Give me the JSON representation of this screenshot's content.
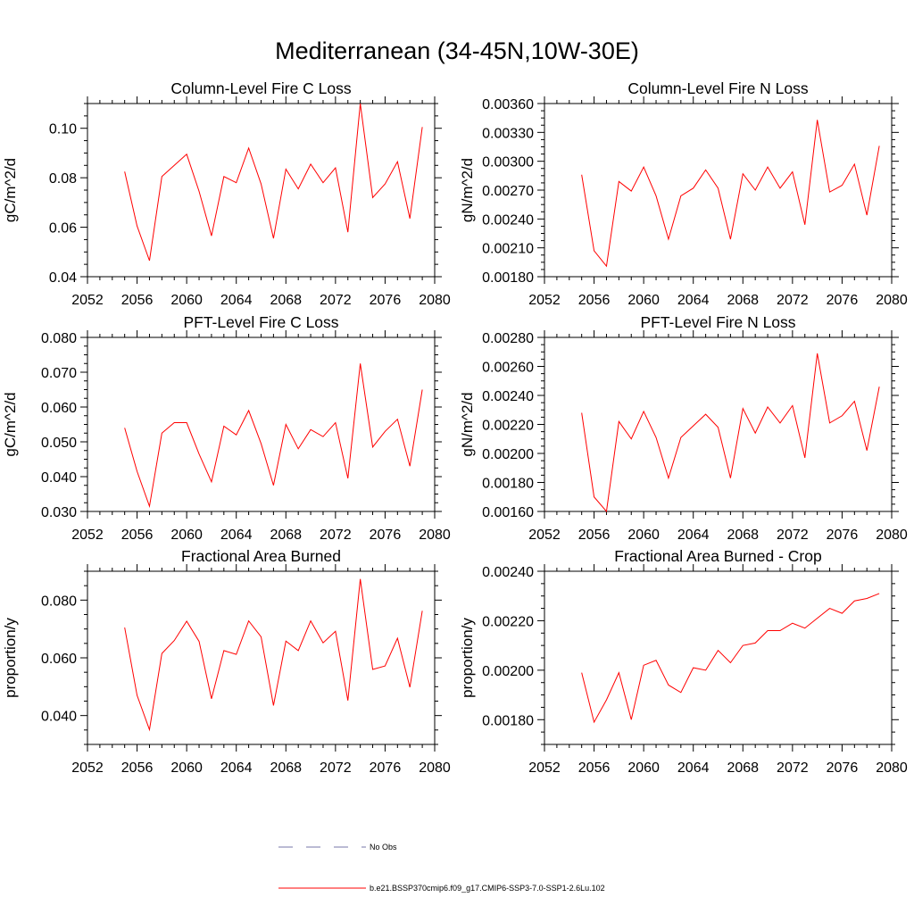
{
  "page": {
    "title": "Mediterranean (34-45N,10W-30E)"
  },
  "legend": {
    "entries": [
      {
        "label": "No Obs",
        "color": "#7777aa",
        "dash": true
      },
      {
        "label": "b.e21.BSSP370cmip6.f09_g17.CMIP6-SSP3-7.0-SSP1-2.6Lu.102",
        "color": "#ff0000",
        "dash": false
      }
    ]
  },
  "chart_data": [
    {
      "type": "line",
      "title": "Column-Level Fire C Loss",
      "ylabel": "gC/m^2/d",
      "xlim": [
        2052,
        2080
      ],
      "ylim": [
        0.04,
        0.11
      ],
      "x_ticks": [
        "2052",
        "2056",
        "2060",
        "2064",
        "2068",
        "2072",
        "2076",
        "2080"
      ],
      "y_ticks": [
        "0.04",
        "0.06",
        "0.08",
        "0.10"
      ],
      "x": [
        2055,
        2056,
        2057,
        2058,
        2059,
        2060,
        2061,
        2062,
        2063,
        2064,
        2065,
        2066,
        2067,
        2068,
        2069,
        2070,
        2071,
        2072,
        2073,
        2074,
        2075,
        2076,
        2077,
        2078,
        2079
      ],
      "series": [
        {
          "color": "#ff0000",
          "values": [
            0.0825,
            0.0605,
            0.0465,
            0.0805,
            0.085,
            0.0895,
            0.0745,
            0.0565,
            0.0805,
            0.078,
            0.092,
            0.0775,
            0.0555,
            0.0835,
            0.0755,
            0.0855,
            0.078,
            0.084,
            0.058,
            0.11,
            0.072,
            0.0775,
            0.0865,
            0.0635,
            0.1005
          ]
        }
      ]
    },
    {
      "type": "line",
      "title": "Column-Level Fire N Loss",
      "ylabel": "gN/m^2/d",
      "xlim": [
        2052,
        2080
      ],
      "ylim": [
        0.0018,
        0.0036
      ],
      "x_ticks": [
        "2052",
        "2056",
        "2060",
        "2064",
        "2068",
        "2072",
        "2076",
        "2080"
      ],
      "y_ticks": [
        "0.00180",
        "0.00210",
        "0.00240",
        "0.00270",
        "0.00300",
        "0.00330",
        "0.00360"
      ],
      "x": [
        2055,
        2056,
        2057,
        2058,
        2059,
        2060,
        2061,
        2062,
        2063,
        2064,
        2065,
        2066,
        2067,
        2068,
        2069,
        2070,
        2071,
        2072,
        2073,
        2074,
        2075,
        2076,
        2077,
        2078,
        2079
      ],
      "series": [
        {
          "color": "#ff0000",
          "values": [
            0.00286,
            0.00207,
            0.00191,
            0.00279,
            0.00269,
            0.00294,
            0.00264,
            0.00219,
            0.00264,
            0.00272,
            0.00291,
            0.00272,
            0.00219,
            0.00287,
            0.0027,
            0.00294,
            0.00272,
            0.00289,
            0.00234,
            0.00343,
            0.00268,
            0.00275,
            0.00297,
            0.00244,
            0.00316
          ]
        }
      ]
    },
    {
      "type": "line",
      "title": "PFT-Level Fire C Loss",
      "ylabel": "gC/m^2/d",
      "xlim": [
        2052,
        2080
      ],
      "ylim": [
        0.03,
        0.08
      ],
      "x_ticks": [
        "2052",
        "2056",
        "2060",
        "2064",
        "2068",
        "2072",
        "2076",
        "2080"
      ],
      "y_ticks": [
        "0.030",
        "0.040",
        "0.050",
        "0.060",
        "0.070",
        "0.080"
      ],
      "x": [
        2055,
        2056,
        2057,
        2058,
        2059,
        2060,
        2061,
        2062,
        2063,
        2064,
        2065,
        2066,
        2067,
        2068,
        2069,
        2070,
        2071,
        2072,
        2073,
        2074,
        2075,
        2076,
        2077,
        2078,
        2079
      ],
      "series": [
        {
          "color": "#ff0000",
          "values": [
            0.054,
            0.0415,
            0.0315,
            0.0525,
            0.0555,
            0.0555,
            0.0465,
            0.0385,
            0.0545,
            0.052,
            0.059,
            0.0495,
            0.0375,
            0.055,
            0.048,
            0.0535,
            0.0515,
            0.0555,
            0.0395,
            0.0725,
            0.0485,
            0.053,
            0.0565,
            0.043,
            0.065
          ]
        }
      ]
    },
    {
      "type": "line",
      "title": "PFT-Level Fire N Loss",
      "ylabel": "gN/m^2/d",
      "xlim": [
        2052,
        2080
      ],
      "ylim": [
        0.0016,
        0.0028
      ],
      "x_ticks": [
        "2052",
        "2056",
        "2060",
        "2064",
        "2068",
        "2072",
        "2076",
        "2080"
      ],
      "y_ticks": [
        "0.00160",
        "0.00180",
        "0.00200",
        "0.00220",
        "0.00240",
        "0.00260",
        "0.00280"
      ],
      "x": [
        2055,
        2056,
        2057,
        2058,
        2059,
        2060,
        2061,
        2062,
        2063,
        2064,
        2065,
        2066,
        2067,
        2068,
        2069,
        2070,
        2071,
        2072,
        2073,
        2074,
        2075,
        2076,
        2077,
        2078,
        2079
      ],
      "series": [
        {
          "color": "#ff0000",
          "values": [
            0.00228,
            0.0017,
            0.0016,
            0.00222,
            0.0021,
            0.00229,
            0.00211,
            0.00183,
            0.00211,
            0.00219,
            0.00227,
            0.00218,
            0.00183,
            0.00231,
            0.00214,
            0.00232,
            0.00221,
            0.00233,
            0.00197,
            0.00269,
            0.00221,
            0.00226,
            0.00236,
            0.00202,
            0.00246
          ]
        }
      ]
    },
    {
      "type": "line",
      "title": "Fractional Area Burned",
      "ylabel": "proportion/y",
      "xlim": [
        2052,
        2080
      ],
      "ylim": [
        0.03,
        0.09
      ],
      "x_ticks": [
        "2052",
        "2056",
        "2060",
        "2064",
        "2068",
        "2072",
        "2076",
        "2080"
      ],
      "y_ticks": [
        "0.040",
        "0.060",
        "0.080"
      ],
      "x": [
        2055,
        2056,
        2057,
        2058,
        2059,
        2060,
        2061,
        2062,
        2063,
        2064,
        2065,
        2066,
        2067,
        2068,
        2069,
        2070,
        2071,
        2072,
        2073,
        2074,
        2075,
        2076,
        2077,
        2078,
        2079
      ],
      "series": [
        {
          "color": "#ff0000",
          "values": [
            0.0705,
            0.047,
            0.0351,
            0.0615,
            0.066,
            0.0727,
            0.0657,
            0.0458,
            0.0625,
            0.0612,
            0.0728,
            0.0673,
            0.0435,
            0.0658,
            0.0625,
            0.0728,
            0.0652,
            0.0692,
            0.0452,
            0.0873,
            0.056,
            0.0572,
            0.0668,
            0.0498,
            0.0763
          ]
        }
      ]
    },
    {
      "type": "line",
      "title": "Fractional Area Burned - Crop",
      "ylabel": "proportion/y",
      "xlim": [
        2052,
        2080
      ],
      "ylim": [
        0.0017,
        0.0024
      ],
      "x_ticks": [
        "2052",
        "2056",
        "2060",
        "2064",
        "2068",
        "2072",
        "2076",
        "2080"
      ],
      "y_ticks": [
        "0.00180",
        "0.00200",
        "0.00220",
        "0.00240"
      ],
      "x": [
        2055,
        2056,
        2057,
        2058,
        2059,
        2060,
        2061,
        2062,
        2063,
        2064,
        2065,
        2066,
        2067,
        2068,
        2069,
        2070,
        2071,
        2072,
        2073,
        2074,
        2075,
        2076,
        2077,
        2078,
        2079
      ],
      "series": [
        {
          "color": "#ff0000",
          "values": [
            0.00199,
            0.00179,
            0.00188,
            0.00199,
            0.0018,
            0.00202,
            0.00204,
            0.00194,
            0.00191,
            0.00201,
            0.002,
            0.00208,
            0.00203,
            0.0021,
            0.00211,
            0.00216,
            0.00216,
            0.00219,
            0.00217,
            0.00221,
            0.00225,
            0.00223,
            0.00228,
            0.00229,
            0.00231
          ]
        }
      ]
    }
  ]
}
